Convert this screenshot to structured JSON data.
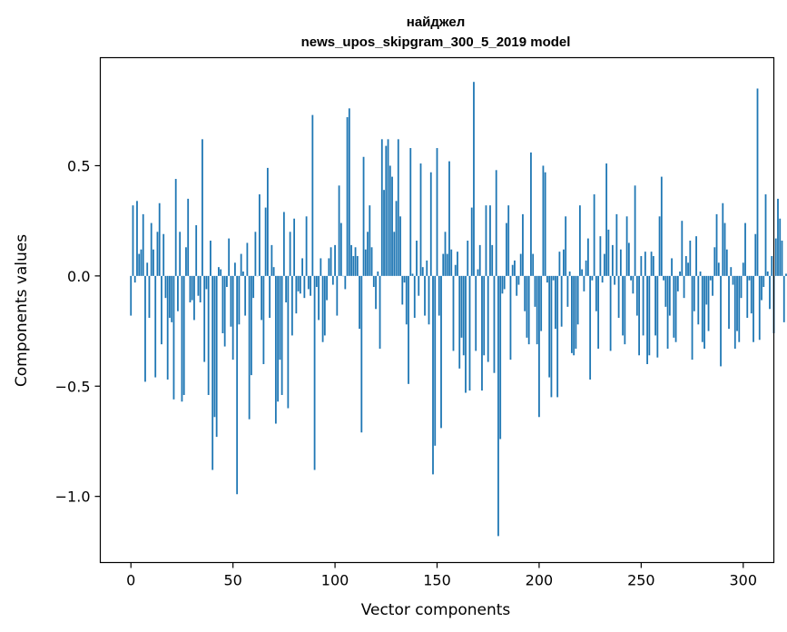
{
  "chart_data": {
    "type": "bar",
    "title": "найджел",
    "subtitle": "news_upos_skipgram_300_5_2019 model",
    "xlabel": "Vector components",
    "ylabel": "Components values",
    "xlim": [
      -15,
      315
    ],
    "ylim": [
      -1.3,
      0.99
    ],
    "xticks": [
      0,
      50,
      100,
      150,
      200,
      250,
      300
    ],
    "xtick_labels": [
      "0",
      "50",
      "100",
      "150",
      "200",
      "250",
      "300"
    ],
    "yticks": [
      -1.0,
      -0.5,
      0.0,
      0.5
    ],
    "ytick_labels": [
      "−1.0",
      "−0.5",
      "0.0",
      "0.5"
    ],
    "grid": false,
    "bar_color": "#1f77b4",
    "values": [
      -0.18,
      0.32,
      -0.03,
      0.34,
      0.1,
      0.12,
      0.28,
      -0.48,
      0.06,
      -0.19,
      0.24,
      0.12,
      -0.46,
      0.2,
      0.33,
      -0.31,
      0.19,
      -0.1,
      -0.47,
      -0.19,
      -0.21,
      -0.56,
      0.44,
      -0.16,
      0.2,
      -0.57,
      -0.54,
      0.13,
      0.35,
      -0.12,
      -0.11,
      -0.2,
      0.23,
      -0.09,
      -0.12,
      0.62,
      -0.39,
      -0.06,
      -0.54,
      0.16,
      -0.88,
      -0.64,
      -0.73,
      0.04,
      0.03,
      -0.26,
      -0.32,
      -0.05,
      0.17,
      -0.23,
      -0.38,
      0.06,
      -0.99,
      -0.22,
      0.1,
      0.02,
      -0.18,
      0.15,
      -0.65,
      -0.45,
      -0.1,
      0.2,
      0.0,
      0.37,
      -0.2,
      -0.4,
      0.31,
      0.49,
      -0.19,
      0.14,
      0.04,
      -0.67,
      -0.57,
      -0.38,
      -0.54,
      0.29,
      -0.12,
      -0.6,
      0.2,
      -0.27,
      0.26,
      -0.17,
      -0.07,
      -0.08,
      0.08,
      -0.1,
      0.27,
      -0.06,
      -0.09,
      0.73,
      -0.88,
      -0.05,
      -0.2,
      0.08,
      -0.3,
      -0.27,
      -0.11,
      0.08,
      0.13,
      -0.04,
      0.14,
      -0.18,
      0.41,
      0.24,
      0.0,
      -0.06,
      0.72,
      0.76,
      0.14,
      0.09,
      0.13,
      0.09,
      -0.24,
      -0.71,
      0.54,
      0.12,
      0.2,
      0.32,
      0.13,
      -0.05,
      -0.15,
      0.02,
      -0.33,
      0.62,
      0.39,
      0.59,
      0.62,
      0.5,
      0.45,
      0.2,
      0.34,
      0.62,
      0.27,
      -0.13,
      -0.03,
      -0.22,
      -0.49,
      0.58,
      0.01,
      -0.19,
      0.16,
      -0.09,
      0.51,
      0.04,
      -0.18,
      0.07,
      -0.22,
      0.47,
      -0.9,
      -0.77,
      0.58,
      -0.18,
      -0.69,
      0.1,
      0.2,
      0.1,
      0.52,
      0.12,
      -0.34,
      0.05,
      0.11,
      -0.42,
      -0.28,
      -0.36,
      -0.53,
      0.16,
      -0.52,
      0.31,
      0.88,
      -0.34,
      0.03,
      0.14,
      -0.52,
      -0.36,
      0.32,
      -0.39,
      0.32,
      0.14,
      -0.44,
      0.48,
      -1.18,
      -0.74,
      -0.08,
      -0.06,
      0.24,
      0.32,
      -0.38,
      0.05,
      0.07,
      -0.09,
      -0.04,
      0.1,
      0.28,
      -0.16,
      -0.28,
      -0.31,
      0.56,
      0.1,
      -0.14,
      -0.31,
      -0.64,
      -0.25,
      0.5,
      0.47,
      -0.03,
      -0.46,
      -0.55,
      -0.02,
      -0.24,
      -0.55,
      0.11,
      -0.23,
      0.12,
      0.27,
      -0.14,
      0.02,
      -0.35,
      -0.36,
      -0.33,
      -0.22,
      0.32,
      0.03,
      -0.07,
      0.07,
      0.17,
      -0.47,
      -0.02,
      0.37,
      -0.16,
      -0.33,
      0.18,
      -0.03,
      0.1,
      0.51,
      0.21,
      -0.34,
      0.14,
      -0.04,
      0.28,
      -0.19,
      0.12,
      -0.27,
      -0.31,
      0.27,
      0.15,
      -0.02,
      -0.08,
      0.41,
      -0.18,
      -0.36,
      0.09,
      -0.27,
      0.11,
      -0.4,
      -0.36,
      0.11,
      0.09,
      -0.27,
      -0.37,
      0.27,
      0.45,
      -0.02,
      -0.14,
      -0.33,
      -0.18,
      0.08,
      -0.28,
      -0.3,
      -0.07,
      0.02,
      0.25,
      -0.1,
      0.09,
      0.06,
      0.16,
      -0.38,
      -0.16,
      0.18,
      -0.22,
      0.02,
      -0.3,
      -0.33,
      -0.13,
      -0.25,
      -0.02,
      -0.09,
      0.13,
      0.28,
      0.06,
      -0.41,
      0.33,
      0.24,
      0.12,
      -0.24,
      0.04,
      -0.04,
      -0.33,
      -0.25,
      -0.3,
      -0.1,
      0.06,
      0.24,
      -0.19,
      -0.02,
      -0.17,
      -0.3,
      0.19,
      0.85,
      -0.29,
      -0.11,
      -0.05,
      0.37,
      0.02,
      -0.15,
      0.09,
      -0.26,
      0.17,
      0.35,
      0.26,
      0.16,
      -0.21,
      0.01
    ]
  }
}
